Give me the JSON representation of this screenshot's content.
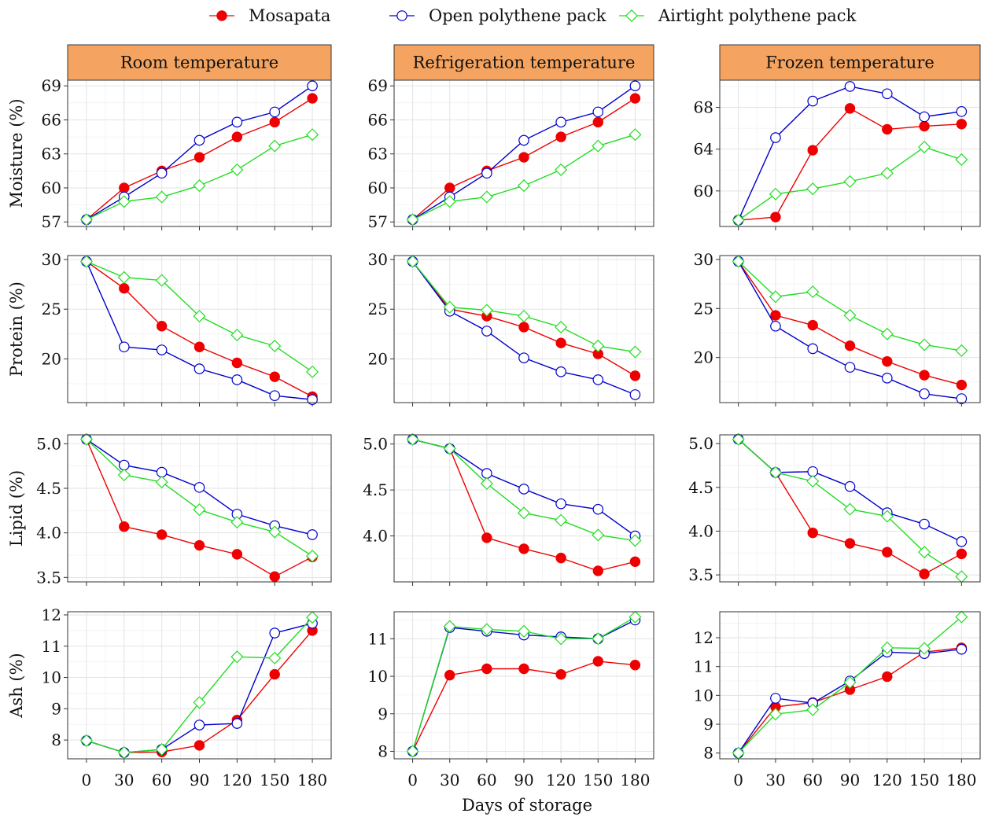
{
  "chart_data": {
    "type": "line",
    "x": [
      0,
      30,
      60,
      90,
      120,
      150,
      180
    ],
    "xlabel": "Days of storage",
    "legend": {
      "position": "top"
    },
    "grid": true,
    "series_styles": [
      {
        "name": "Mosapata",
        "color": "#ee0000",
        "marker": "filled-circle"
      },
      {
        "name": "Open polythene pack",
        "color": "#0000cc",
        "marker": "open-circle"
      },
      {
        "name": "Airtight polythene pack",
        "color": "#22dd22",
        "marker": "open-diamond"
      }
    ],
    "columns": [
      "Room temperature",
      "Refrigeration temperature",
      "Frozen temperature"
    ],
    "rows": [
      {
        "ylabel": "Moisture (%)",
        "panels": [
          {
            "ylim": [
              56.6,
              69.5
            ],
            "yticks": [
              57,
              60,
              63,
              66,
              69
            ],
            "series": [
              {
                "name": "Mosapata",
                "values": [
                  57.2,
                  60.0,
                  61.5,
                  62.7,
                  64.5,
                  65.8,
                  67.9
                ]
              },
              {
                "name": "Open polythene pack",
                "values": [
                  57.2,
                  59.2,
                  61.3,
                  64.2,
                  65.8,
                  66.7,
                  69.0
                ]
              },
              {
                "name": "Airtight polythene pack",
                "values": [
                  57.2,
                  58.8,
                  59.2,
                  60.2,
                  61.6,
                  63.7,
                  64.7
                ]
              }
            ]
          },
          {
            "ylim": [
              56.6,
              69.5
            ],
            "yticks": [
              57,
              60,
              63,
              66,
              69
            ],
            "series": [
              {
                "name": "Mosapata",
                "values": [
                  57.2,
                  60.0,
                  61.5,
                  62.7,
                  64.5,
                  65.8,
                  67.9
                ]
              },
              {
                "name": "Open polythene pack",
                "values": [
                  57.2,
                  59.2,
                  61.3,
                  64.2,
                  65.8,
                  66.7,
                  69.0
                ]
              },
              {
                "name": "Airtight polythene pack",
                "values": [
                  57.2,
                  58.8,
                  59.2,
                  60.2,
                  61.6,
                  63.7,
                  64.7
                ]
              }
            ]
          },
          {
            "ylim": [
              56.6,
              70.6
            ],
            "yticks": [
              60,
              64,
              68
            ],
            "series": [
              {
                "name": "Mosapata",
                "values": [
                  57.2,
                  57.5,
                  63.9,
                  67.9,
                  65.9,
                  66.2,
                  66.4
                ]
              },
              {
                "name": "Open polythene pack",
                "values": [
                  57.2,
                  65.1,
                  68.6,
                  70.0,
                  69.3,
                  67.1,
                  67.6
                ]
              },
              {
                "name": "Airtight polythene pack",
                "values": [
                  57.2,
                  59.7,
                  60.2,
                  60.9,
                  61.7,
                  64.2,
                  63.0
                ]
              }
            ]
          }
        ]
      },
      {
        "ylabel": "Protein (%)",
        "panels": [
          {
            "ylim": [
              15.6,
              30.4
            ],
            "yticks": [
              20,
              25,
              30
            ],
            "series": [
              {
                "name": "Mosapata",
                "values": [
                  29.8,
                  27.1,
                  23.3,
                  21.2,
                  19.6,
                  18.2,
                  16.2
                ]
              },
              {
                "name": "Open polythene pack",
                "values": [
                  29.8,
                  21.2,
                  20.9,
                  19.0,
                  17.9,
                  16.3,
                  15.9
                ]
              },
              {
                "name": "Airtight polythene pack",
                "values": [
                  29.8,
                  28.2,
                  27.9,
                  24.3,
                  22.4,
                  21.3,
                  18.7
                ]
              }
            ]
          },
          {
            "ylim": [
              15.6,
              30.4
            ],
            "yticks": [
              20,
              25,
              30
            ],
            "series": [
              {
                "name": "Mosapata",
                "values": [
                  29.8,
                  25.0,
                  24.3,
                  23.2,
                  21.6,
                  20.5,
                  18.3
                ]
              },
              {
                "name": "Open polythene pack",
                "values": [
                  29.8,
                  24.8,
                  22.8,
                  20.1,
                  18.7,
                  17.9,
                  16.4
                ]
              },
              {
                "name": "Airtight polythene pack",
                "values": [
                  29.8,
                  25.2,
                  24.9,
                  24.3,
                  23.2,
                  21.3,
                  20.7
                ]
              }
            ]
          },
          {
            "ylim": [
              15.4,
              30.4
            ],
            "yticks": [
              20,
              25,
              30
            ],
            "series": [
              {
                "name": "Mosapata",
                "values": [
                  29.8,
                  24.3,
                  23.3,
                  21.2,
                  19.6,
                  18.2,
                  17.2
                ]
              },
              {
                "name": "Open polythene pack",
                "values": [
                  29.8,
                  23.2,
                  20.9,
                  19.0,
                  17.9,
                  16.3,
                  15.8
                ]
              },
              {
                "name": "Airtight polythene pack",
                "values": [
                  29.8,
                  26.2,
                  26.7,
                  24.3,
                  22.4,
                  21.3,
                  20.7
                ]
              }
            ]
          }
        ]
      },
      {
        "ylabel": "Lipid (%)",
        "panels": [
          {
            "ylim": [
              3.45,
              5.1
            ],
            "yticks": [
              3.5,
              4.0,
              4.5,
              5.0
            ],
            "series": [
              {
                "name": "Mosapata",
                "values": [
                  5.05,
                  4.07,
                  3.98,
                  3.86,
                  3.76,
                  3.51,
                  3.73
                ]
              },
              {
                "name": "Open polythene pack",
                "values": [
                  5.05,
                  4.76,
                  4.68,
                  4.51,
                  4.21,
                  4.08,
                  3.98
                ]
              },
              {
                "name": "Airtight polythene pack",
                "values": [
                  5.05,
                  4.65,
                  4.57,
                  4.26,
                  4.12,
                  4.01,
                  3.74
                ]
              }
            ]
          },
          {
            "ylim": [
              3.5,
              5.1
            ],
            "yticks": [
              4.0,
              4.5,
              5.0
            ],
            "series": [
              {
                "name": "Mosapata",
                "values": [
                  5.05,
                  4.95,
                  3.98,
                  3.86,
                  3.76,
                  3.62,
                  3.72
                ]
              },
              {
                "name": "Open polythene pack",
                "values": [
                  5.05,
                  4.95,
                  4.68,
                  4.51,
                  4.35,
                  4.29,
                  4.0
                ]
              },
              {
                "name": "Airtight polythene pack",
                "values": [
                  5.05,
                  4.95,
                  4.57,
                  4.25,
                  4.17,
                  4.01,
                  3.95
                ]
              }
            ]
          },
          {
            "ylim": [
              3.42,
              5.1
            ],
            "yticks": [
              3.5,
              4.0,
              4.5,
              5.0
            ],
            "series": [
              {
                "name": "Mosapata",
                "values": [
                  5.05,
                  4.67,
                  3.98,
                  3.86,
                  3.76,
                  3.51,
                  3.74
                ]
              },
              {
                "name": "Open polythene pack",
                "values": [
                  5.05,
                  4.67,
                  4.68,
                  4.51,
                  4.21,
                  4.08,
                  3.88
                ]
              },
              {
                "name": "Airtight polythene pack",
                "values": [
                  5.05,
                  4.67,
                  4.57,
                  4.25,
                  4.17,
                  3.76,
                  3.48
                ]
              }
            ]
          }
        ]
      },
      {
        "ylabel": "Ash (%)",
        "panels": [
          {
            "ylim": [
              7.4,
              12.1
            ],
            "yticks": [
              8,
              9,
              10,
              11,
              12
            ],
            "series": [
              {
                "name": "Mosapata",
                "values": [
                  7.98,
                  7.6,
                  7.62,
                  7.83,
                  8.64,
                  10.1,
                  11.5
                ]
              },
              {
                "name": "Open polythene pack",
                "values": [
                  7.98,
                  7.6,
                  7.7,
                  8.48,
                  8.53,
                  11.42,
                  11.73
                ]
              },
              {
                "name": "Airtight polythene pack",
                "values": [
                  7.98,
                  7.6,
                  7.7,
                  9.2,
                  10.66,
                  10.62,
                  11.92
                ]
              }
            ]
          },
          {
            "ylim": [
              7.8,
              11.72
            ],
            "yticks": [
              8,
              9,
              10,
              11
            ],
            "series": [
              {
                "name": "Mosapata",
                "values": [
                  8.0,
                  10.03,
                  10.2,
                  10.2,
                  10.05,
                  10.4,
                  10.3
                ]
              },
              {
                "name": "Open polythene pack",
                "values": [
                  8.0,
                  11.3,
                  11.2,
                  11.1,
                  11.05,
                  11.0,
                  11.5
                ]
              },
              {
                "name": "Airtight polythene pack",
                "values": [
                  8.0,
                  11.33,
                  11.25,
                  11.2,
                  11.0,
                  11.0,
                  11.58
                ]
              }
            ]
          },
          {
            "ylim": [
              7.8,
              12.9
            ],
            "yticks": [
              8,
              9,
              10,
              11,
              12
            ],
            "series": [
              {
                "name": "Mosapata",
                "values": [
                  8.0,
                  9.6,
                  9.75,
                  10.2,
                  10.65,
                  11.5,
                  11.65
                ]
              },
              {
                "name": "Open polythene pack",
                "values": [
                  8.0,
                  9.9,
                  9.73,
                  10.5,
                  11.5,
                  11.45,
                  11.6
                ]
              },
              {
                "name": "Airtight polythene pack",
                "values": [
                  8.0,
                  9.35,
                  9.5,
                  10.45,
                  11.65,
                  11.63,
                  12.72
                ]
              }
            ]
          }
        ]
      }
    ]
  }
}
